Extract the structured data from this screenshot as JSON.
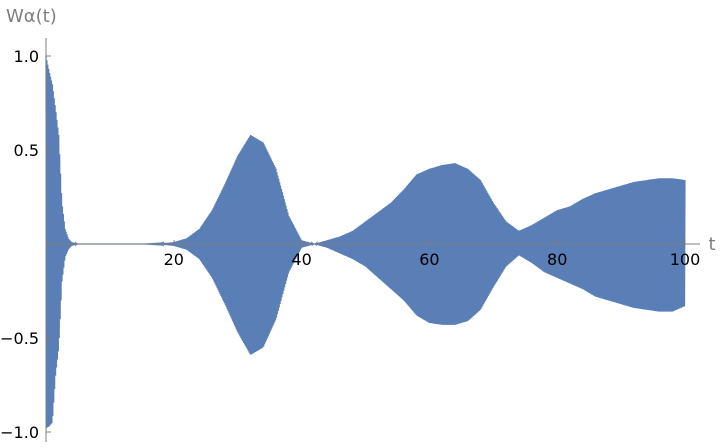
{
  "chart_data": {
    "type": "area",
    "title": "",
    "xlabel": "t",
    "ylabel": "Wα(t)",
    "xlim": [
      0,
      100
    ],
    "ylim": [
      -1.0,
      1.0
    ],
    "grid": false,
    "x_ticks": [
      20,
      40,
      60,
      80,
      100
    ],
    "x_tick_labels": [
      "20",
      "40",
      "60",
      "80",
      "100"
    ],
    "y_ticks": [
      -1.0,
      -0.5,
      0.5,
      1.0
    ],
    "y_tick_labels": [
      "−1.0",
      "−0.5",
      "0.5",
      "1.0"
    ],
    "fill_color": "#5a7eb6",
    "axis_color": "#7f7f7f",
    "series": [
      {
        "x": [
          0,
          0.5,
          1,
          1.5,
          2,
          2.5,
          3,
          3.5,
          4,
          5,
          10,
          15,
          18,
          20,
          22,
          24,
          26,
          28,
          30,
          32,
          34,
          36,
          38,
          40,
          42,
          44,
          46,
          48,
          50,
          52,
          54,
          56,
          58,
          60,
          62,
          64,
          66,
          68,
          70,
          72,
          74,
          76,
          78,
          80,
          82,
          84,
          86,
          88,
          90,
          92,
          94,
          96,
          98,
          100
        ],
        "upper": [
          1.0,
          0.92,
          0.85,
          0.72,
          0.58,
          0.22,
          0.08,
          0.03,
          0.01,
          0.0,
          0.0,
          0.0,
          0.003,
          0.01,
          0.03,
          0.08,
          0.18,
          0.32,
          0.47,
          0.58,
          0.54,
          0.4,
          0.15,
          0.02,
          0.0,
          0.02,
          0.04,
          0.07,
          0.12,
          0.17,
          0.22,
          0.29,
          0.37,
          0.4,
          0.42,
          0.43,
          0.4,
          0.34,
          0.22,
          0.12,
          0.07,
          0.1,
          0.14,
          0.18,
          0.2,
          0.24,
          0.27,
          0.29,
          0.31,
          0.33,
          0.34,
          0.35,
          0.35,
          0.34
        ],
        "lower": [
          -0.98,
          -0.97,
          -0.95,
          -0.7,
          -0.55,
          -0.2,
          -0.07,
          -0.03,
          -0.01,
          0.0,
          0.0,
          0.0,
          -0.003,
          -0.01,
          -0.03,
          -0.08,
          -0.18,
          -0.32,
          -0.47,
          -0.59,
          -0.55,
          -0.4,
          -0.15,
          -0.02,
          0.0,
          -0.02,
          -0.05,
          -0.08,
          -0.12,
          -0.18,
          -0.24,
          -0.3,
          -0.38,
          -0.42,
          -0.43,
          -0.43,
          -0.41,
          -0.35,
          -0.23,
          -0.12,
          -0.06,
          -0.1,
          -0.15,
          -0.18,
          -0.21,
          -0.24,
          -0.28,
          -0.3,
          -0.32,
          -0.34,
          -0.35,
          -0.36,
          -0.36,
          -0.33
        ]
      }
    ]
  }
}
